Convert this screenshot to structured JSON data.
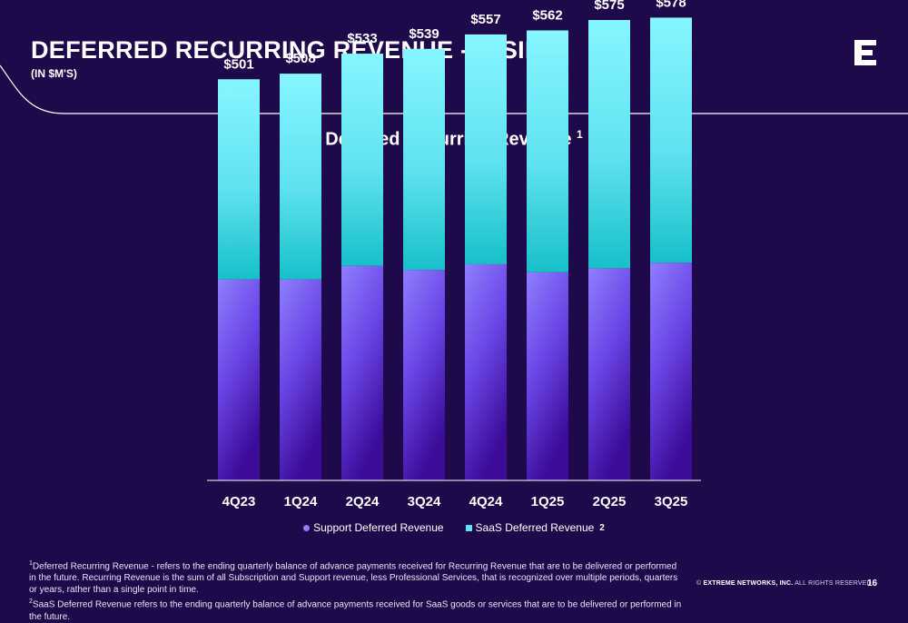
{
  "header": {
    "title": "DEFERRED RECURRING REVENUE - RISING",
    "subtitle": "(IN $M'S)"
  },
  "logo": {
    "icon": "extreme-e-logo-icon"
  },
  "colors": {
    "background": "#1e0a4a",
    "saas_top": "#86f6ff",
    "saas_bottom": "#17c0c9",
    "support_top": "#8e7ffd",
    "support_bottom": "#3c0c99"
  },
  "chart_data": {
    "type": "bar",
    "stacked": true,
    "title": "Deferred Recurring Revenue",
    "title_footnote": "1",
    "categories": [
      "4Q23",
      "1Q24",
      "2Q24",
      "3Q24",
      "4Q24",
      "1Q25",
      "2Q25",
      "3Q25"
    ],
    "totals": [
      501,
      508,
      533,
      539,
      557,
      562,
      575,
      578
    ],
    "total_labels": [
      "$501",
      "$508",
      "$533",
      "$539",
      "$557",
      "$562",
      "$575",
      "$578"
    ],
    "series": [
      {
        "name": "Support Deferred Revenue",
        "values": [
          251,
          251,
          268,
          263,
          270,
          260,
          265,
          272
        ]
      },
      {
        "name": "SaaS Deferred Revenue",
        "footnote": "2",
        "values": [
          250,
          257,
          265,
          276,
          287,
          302,
          310,
          306
        ]
      }
    ],
    "ylim": [
      0,
      600
    ],
    "grid": false,
    "legend_position": "bottom"
  },
  "legend": {
    "support_label": "Support Deferred Revenue",
    "saas_label": "SaaS Deferred Revenue",
    "saas_footnote": "2"
  },
  "footnotes": {
    "note1_marker": "1",
    "note1_text": "Deferred Recurring Revenue - refers to the ending quarterly balance of advance payments received for Recurring Revenue that are to be delivered or performed in the future. Recurring Revenue is the sum of all Subscription and Support revenue, less Professional Services, that is recognized over multiple periods, quarters or years, rather than a single point in time.",
    "note2_marker": "2",
    "note2_text": "SaaS Deferred Revenue refers to the ending quarterly balance of advance payments received for SaaS goods or services that are to be delivered or performed in the future."
  },
  "footer": {
    "copyright_symbol": "©",
    "company": "EXTREME NETWORKS, INC.",
    "rights": "ALL RIGHTS RESERVED.",
    "page_number": "16"
  }
}
